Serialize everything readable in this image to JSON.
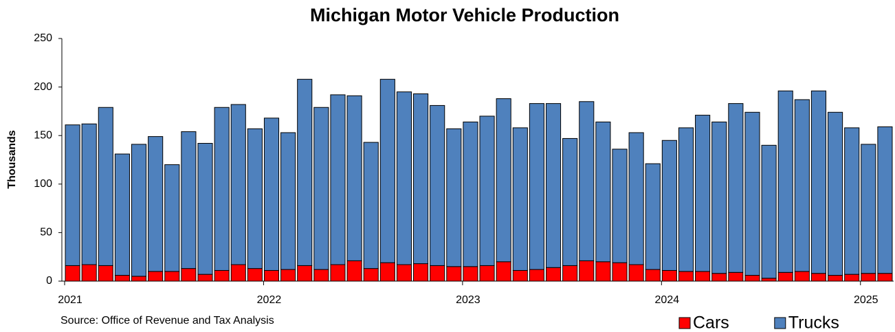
{
  "chart_data": {
    "type": "stacked_bar",
    "title": "Michigan Motor Vehicle Production",
    "y_label": "Thousands",
    "source": "Source: Office of Revenue and Tax Analysis",
    "categories": [
      "2021",
      null,
      null,
      null,
      null,
      null,
      null,
      null,
      null,
      null,
      null,
      null,
      "2022",
      null,
      null,
      null,
      null,
      null,
      null,
      null,
      null,
      null,
      null,
      null,
      "2023",
      null,
      null,
      null,
      null,
      null,
      null,
      null,
      null,
      null,
      null,
      null,
      "2024",
      null,
      null,
      null,
      null,
      null,
      null,
      null,
      null,
      null,
      null,
      null,
      "2025",
      null
    ],
    "series": [
      {
        "name": "Cars",
        "color": "#ff0000",
        "values": [
          16,
          17,
          16,
          6,
          5,
          10,
          10,
          13,
          7,
          11,
          17,
          13,
          11,
          12,
          16,
          12,
          17,
          21,
          13,
          19,
          17,
          18,
          16,
          15,
          15,
          16,
          20,
          11,
          12,
          14,
          16,
          21,
          20,
          19,
          17,
          12,
          11,
          10,
          10,
          8,
          9,
          6,
          3,
          9,
          10,
          8,
          6,
          7,
          8,
          8
        ]
      },
      {
        "name": "Trucks",
        "color": "#4f81bd",
        "values": [
          145,
          145,
          163,
          125,
          136,
          139,
          110,
          141,
          135,
          168,
          165,
          144,
          157,
          141,
          192,
          167,
          175,
          170,
          130,
          189,
          178,
          175,
          165,
          142,
          149,
          154,
          168,
          147,
          171,
          169,
          131,
          164,
          144,
          117,
          136,
          109,
          134,
          148,
          161,
          156,
          174,
          168,
          137,
          187,
          177,
          188,
          168,
          151,
          133,
          151
        ]
      }
    ],
    "ylim": [
      0,
      250
    ],
    "yticks": [
      0,
      50,
      100,
      150,
      200,
      250
    ],
    "grid": false,
    "legend": "bottom-right"
  }
}
